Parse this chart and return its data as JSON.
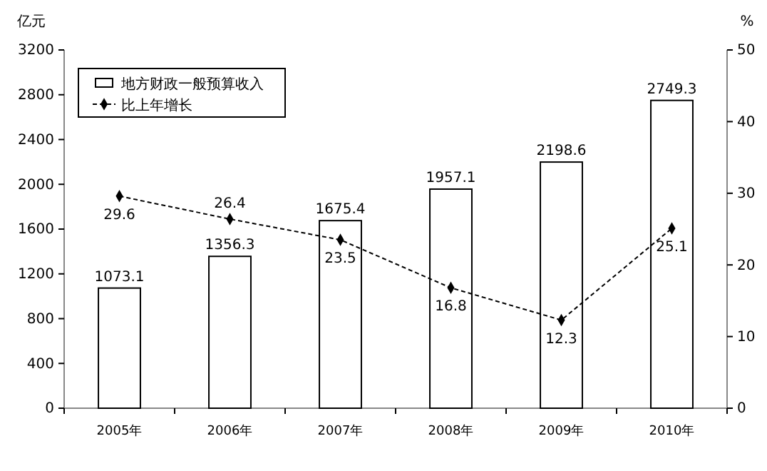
{
  "chart_data": {
    "type": "bar",
    "ylabel": "亿元",
    "y2label": "%",
    "categories": [
      "2005年",
      "2006年",
      "2007年",
      "2008年",
      "2009年",
      "2010年"
    ],
    "series": [
      {
        "name": "地方财政一般预算收入",
        "color": "#ffffff",
        "values": [
          1073.1,
          1356.3,
          1675.4,
          1957.1,
          2198.6,
          2749.3
        ]
      },
      {
        "name": "比上年增长",
        "type": "line",
        "axis": "y2",
        "color": "#000000",
        "marker": "diamond",
        "line_style": "dashed",
        "values": [
          29.6,
          26.4,
          23.5,
          16.8,
          12.3,
          25.1
        ]
      }
    ],
    "ylim": [
      0,
      3200
    ],
    "yticks": [
      0,
      400,
      800,
      1200,
      1600,
      2000,
      2400,
      2800,
      3200
    ],
    "y2lim": [
      0,
      50
    ],
    "y2ticks": [
      0,
      10,
      20,
      30,
      40,
      50
    ],
    "data_labels": true,
    "grid": false,
    "legend": "top left"
  }
}
